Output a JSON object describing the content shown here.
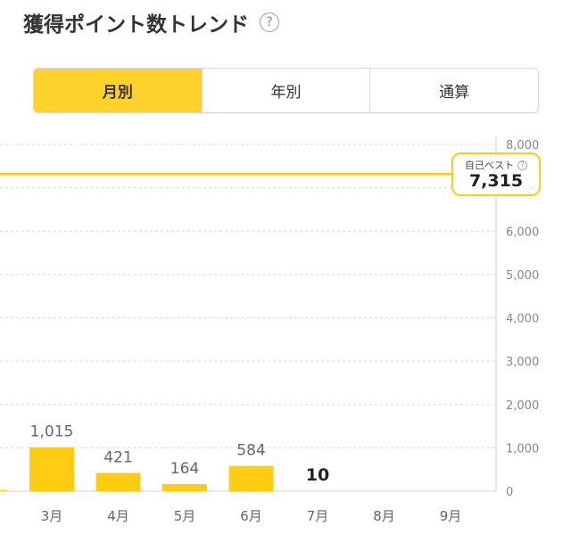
{
  "header": {
    "title": "獲得ポイント数トレンド",
    "help_icon": "?"
  },
  "tabs": [
    {
      "label": "月別",
      "active": true
    },
    {
      "label": "年別",
      "active": false
    },
    {
      "label": "通算",
      "active": false
    }
  ],
  "colors": {
    "accent": "#ffd22b",
    "bar": "#ffcc14",
    "grid": "#d9d9d9",
    "axis_text": "#888888"
  },
  "chart_data": {
    "type": "bar",
    "categories": [
      "3月",
      "4月",
      "5月",
      "6月",
      "7月",
      "8月",
      "9月"
    ],
    "values": [
      1015,
      421,
      164,
      584,
      10,
      null,
      null
    ],
    "data_labels": [
      "1,015",
      "421",
      "164",
      "584",
      "10",
      "",
      ""
    ],
    "partial_left_value": 30,
    "ylim": [
      0,
      8000
    ],
    "yticks": [
      0,
      1000,
      2000,
      3000,
      4000,
      5000,
      6000,
      7000,
      8000
    ],
    "ytick_labels": [
      "0",
      "1,000",
      "2,000",
      "3,000",
      "4,000",
      "5,000",
      "6,000",
      "7,000",
      "8,000"
    ],
    "reference_line": {
      "value": 7315,
      "label": "自己ベスト",
      "value_label": "7,315"
    },
    "grid": true
  }
}
